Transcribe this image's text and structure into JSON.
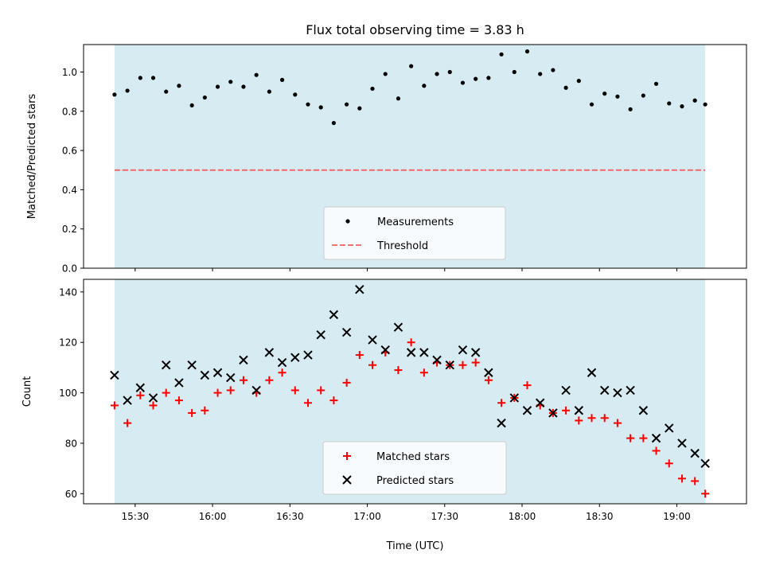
{
  "colors": {
    "shade": "#add8e6",
    "measurement": "#000000",
    "threshold": "#ff0000",
    "matched": "#ff0000",
    "predicted": "#000000"
  },
  "chart_data": [
    {
      "type": "scatter",
      "title": "Flux total observing time = 3.83 h",
      "ylabel": "Matched/Predicted stars",
      "xlabel": "",
      "xlim": [
        "15:10",
        "19:27"
      ],
      "ylim": [
        0,
        1.14
      ],
      "yticks": [
        "0.0",
        "0.2",
        "0.4",
        "0.6",
        "0.8",
        "1.0"
      ],
      "shaded_span": [
        "15:22",
        "19:11"
      ],
      "threshold": 0.5,
      "legend_position": "lower center",
      "legend": [
        "Measurements",
        "Threshold"
      ],
      "series": [
        {
          "name": "Measurements",
          "x": [
            "15:22",
            "15:27",
            "15:32",
            "15:37",
            "15:42",
            "15:47",
            "15:52",
            "15:57",
            "16:02",
            "16:07",
            "16:12",
            "16:17",
            "16:22",
            "16:27",
            "16:32",
            "16:37",
            "16:42",
            "16:47",
            "16:52",
            "16:57",
            "17:02",
            "17:07",
            "17:12",
            "17:17",
            "17:22",
            "17:27",
            "17:32",
            "17:37",
            "17:42",
            "17:47",
            "17:52",
            "17:57",
            "18:02",
            "18:07",
            "18:12",
            "18:17",
            "18:22",
            "18:27",
            "18:32",
            "18:37",
            "18:42",
            "18:47",
            "18:52",
            "18:57",
            "19:02",
            "19:07",
            "19:11"
          ],
          "y": [
            0.885,
            0.905,
            0.97,
            0.97,
            0.9,
            0.93,
            0.83,
            0.87,
            0.925,
            0.95,
            0.925,
            0.985,
            0.9,
            0.96,
            0.885,
            0.835,
            0.82,
            0.74,
            0.835,
            0.815,
            0.915,
            0.99,
            0.865,
            1.03,
            0.93,
            0.99,
            1.0,
            0.945,
            0.965,
            0.97,
            1.09,
            1.0,
            1.105,
            0.99,
            1.01,
            0.92,
            0.955,
            0.835,
            0.89,
            0.875,
            0.81,
            0.88,
            0.94,
            0.84,
            0.825,
            0.855,
            0.835
          ]
        }
      ]
    },
    {
      "type": "scatter",
      "title": "",
      "ylabel": "Count",
      "xlabel": "Time (UTC)",
      "xlim": [
        "15:10",
        "19:27"
      ],
      "ylim": [
        56,
        145
      ],
      "yticks": [
        "60",
        "80",
        "100",
        "120",
        "140"
      ],
      "xticks": [
        "15:30",
        "16:00",
        "16:30",
        "17:00",
        "17:30",
        "18:00",
        "18:30",
        "19:00"
      ],
      "shaded_span": [
        "15:22",
        "19:11"
      ],
      "legend_position": "lower center",
      "legend": [
        "Matched stars",
        "Predicted stars"
      ],
      "series": [
        {
          "name": "Matched stars",
          "x": [
            "15:22",
            "15:27",
            "15:32",
            "15:37",
            "15:42",
            "15:47",
            "15:52",
            "15:57",
            "16:02",
            "16:07",
            "16:12",
            "16:17",
            "16:22",
            "16:27",
            "16:32",
            "16:37",
            "16:42",
            "16:47",
            "16:52",
            "16:57",
            "17:02",
            "17:07",
            "17:12",
            "17:17",
            "17:22",
            "17:27",
            "17:32",
            "17:37",
            "17:42",
            "17:47",
            "17:52",
            "17:57",
            "18:02",
            "18:07",
            "18:12",
            "18:17",
            "18:22",
            "18:27",
            "18:32",
            "18:37",
            "18:42",
            "18:47",
            "18:52",
            "18:57",
            "19:02",
            "19:07",
            "19:11"
          ],
          "y": [
            95,
            88,
            99,
            95,
            100,
            97,
            92,
            93,
            100,
            101,
            105,
            100,
            105,
            108,
            101,
            96,
            101,
            97,
            104,
            115,
            111,
            116,
            109,
            120,
            108,
            112,
            111,
            111,
            112,
            105,
            96,
            98,
            103,
            95,
            92,
            93,
            89,
            90,
            90,
            88,
            82,
            82,
            77,
            72,
            66,
            65,
            60
          ]
        },
        {
          "name": "Predicted stars",
          "x": [
            "15:22",
            "15:27",
            "15:32",
            "15:37",
            "15:42",
            "15:47",
            "15:52",
            "15:57",
            "16:02",
            "16:07",
            "16:12",
            "16:17",
            "16:22",
            "16:27",
            "16:32",
            "16:37",
            "16:42",
            "16:47",
            "16:52",
            "16:57",
            "17:02",
            "17:07",
            "17:12",
            "17:17",
            "17:22",
            "17:27",
            "17:32",
            "17:37",
            "17:42",
            "17:47",
            "17:52",
            "17:57",
            "18:02",
            "18:07",
            "18:12",
            "18:17",
            "18:22",
            "18:27",
            "18:32",
            "18:37",
            "18:42",
            "18:47",
            "18:52",
            "18:57",
            "19:02",
            "19:07",
            "19:11"
          ],
          "y": [
            107,
            97,
            102,
            98,
            111,
            104,
            111,
            107,
            108,
            106,
            113,
            101,
            116,
            112,
            114,
            115,
            123,
            131,
            124,
            141,
            121,
            117,
            126,
            116,
            116,
            113,
            111,
            117,
            116,
            108,
            88,
            98,
            93,
            96,
            92,
            101,
            93,
            108,
            101,
            100,
            101,
            93,
            82,
            86,
            80,
            76,
            72
          ]
        }
      ]
    }
  ]
}
